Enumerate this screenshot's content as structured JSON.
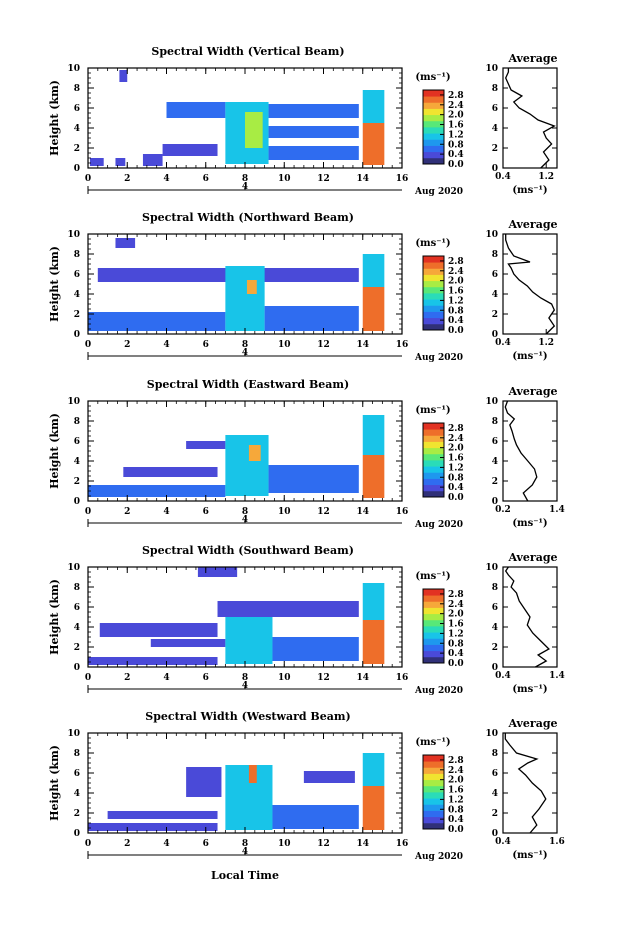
{
  "figure": {
    "xlabel": "Local Time",
    "ylabel": "Height (km)",
    "date_label": "Aug 2020",
    "date_tick_label": "4",
    "colorbar_unit": "(ms⁻¹)",
    "profile_title": "Average",
    "profile_xlabel": "(ms⁻¹)"
  },
  "colors": {
    "colormap": [
      "#303078",
      "#4a4ad8",
      "#2f6cf0",
      "#1e98ee",
      "#18c4e8",
      "#2adcb8",
      "#58e878",
      "#a8ec44",
      "#f0e430",
      "#f6a83a",
      "#ee6e2a",
      "#e23222"
    ]
  },
  "chart_data": [
    {
      "type": "heatmap",
      "title": "Spectral Width (Vertical Beam)",
      "x_ticks": [
        "0",
        "2",
        "4",
        "6",
        "8",
        "10",
        "12",
        "14",
        "16"
      ],
      "y_ticks": [
        "0",
        "2",
        "4",
        "6",
        "8",
        "10"
      ],
      "xlim": [
        0,
        16
      ],
      "ylim": [
        0,
        10
      ],
      "colorbar_ticks": [
        "0.0",
        "0.4",
        "0.8",
        "1.2",
        "1.6",
        "2.0",
        "2.4",
        "2.8"
      ],
      "clim": [
        0,
        3
      ],
      "blocks": [
        {
          "x": [
            0.1,
            0.8
          ],
          "y": [
            0.2,
            1.0
          ],
          "v": 0.35
        },
        {
          "x": [
            1.4,
            1.9
          ],
          "y": [
            0.2,
            1.0
          ],
          "v": 0.35
        },
        {
          "x": [
            2.8,
            3.8
          ],
          "y": [
            0.2,
            1.4
          ],
          "v": 0.4
        },
        {
          "x": [
            1.6,
            2.0
          ],
          "y": [
            8.6,
            9.8
          ],
          "v": 0.4
        },
        {
          "x": [
            3.8,
            6.6
          ],
          "y": [
            1.2,
            2.4
          ],
          "v": 0.45
        },
        {
          "x": [
            4.0,
            7.0
          ],
          "y": [
            5.0,
            6.6
          ],
          "v": 0.5
        },
        {
          "x": [
            7.0,
            9.2
          ],
          "y": [
            0.4,
            6.6
          ],
          "v": 1.1
        },
        {
          "x": [
            8.0,
            8.9
          ],
          "y": [
            2.0,
            5.6
          ],
          "v": 1.8
        },
        {
          "x": [
            9.2,
            13.8
          ],
          "y": [
            5.0,
            6.4
          ],
          "v": 0.55
        },
        {
          "x": [
            9.2,
            13.8
          ],
          "y": [
            3.0,
            4.2
          ],
          "v": 0.55
        },
        {
          "x": [
            9.2,
            13.8
          ],
          "y": [
            0.8,
            2.2
          ],
          "v": 0.6
        },
        {
          "x": [
            14.0,
            15.1
          ],
          "y": [
            0.3,
            4.5
          ],
          "v": 2.6
        },
        {
          "x": [
            14.0,
            15.1
          ],
          "y": [
            4.5,
            7.8
          ],
          "v": 1.0
        }
      ],
      "profile": {
        "xlim": [
          0.4,
          1.4
        ],
        "x_ticks": [
          "0.4",
          "1.2"
        ],
        "tick_values": [
          0.4,
          1.2
        ],
        "x": [
          1.1,
          1.25,
          1.15,
          1.3,
          1.2,
          1.15,
          1.35,
          1.05,
          0.9,
          0.7,
          0.6,
          0.75,
          0.55,
          0.5,
          0.45,
          0.5,
          0.5
        ],
        "height": [
          0,
          0.8,
          1.6,
          2.4,
          3.0,
          3.6,
          4.2,
          4.8,
          5.4,
          6.0,
          6.6,
          7.2,
          7.8,
          8.4,
          9.0,
          9.6,
          10.0
        ]
      }
    },
    {
      "type": "heatmap",
      "title": "Spectral Width (Northward Beam)",
      "x_ticks": [
        "0",
        "2",
        "4",
        "6",
        "8",
        "10",
        "12",
        "14",
        "16"
      ],
      "y_ticks": [
        "0",
        "2",
        "4",
        "6",
        "8",
        "10"
      ],
      "xlim": [
        0,
        16
      ],
      "ylim": [
        0,
        10
      ],
      "colorbar_ticks": [
        "0.0",
        "0.4",
        "0.8",
        "1.2",
        "1.6",
        "2.0",
        "2.4",
        "2.8"
      ],
      "clim": [
        0,
        3
      ],
      "blocks": [
        {
          "x": [
            0.0,
            7.0
          ],
          "y": [
            0.3,
            2.2
          ],
          "v": 0.5
        },
        {
          "x": [
            0.5,
            13.8
          ],
          "y": [
            5.2,
            6.6
          ],
          "v": 0.45
        },
        {
          "x": [
            1.4,
            2.4
          ],
          "y": [
            8.6,
            9.6
          ],
          "v": 0.4
        },
        {
          "x": [
            7.0,
            9.0
          ],
          "y": [
            0.3,
            6.8
          ],
          "v": 1.1
        },
        {
          "x": [
            8.1,
            8.6
          ],
          "y": [
            4.0,
            5.4
          ],
          "v": 2.3
        },
        {
          "x": [
            9.0,
            13.8
          ],
          "y": [
            0.3,
            2.8
          ],
          "v": 0.7
        },
        {
          "x": [
            14.0,
            15.1
          ],
          "y": [
            0.3,
            4.7
          ],
          "v": 2.6
        },
        {
          "x": [
            14.0,
            15.1
          ],
          "y": [
            4.7,
            8.0
          ],
          "v": 1.0
        }
      ],
      "profile": {
        "xlim": [
          0.4,
          1.4
        ],
        "x_ticks": [
          "0.4",
          "1.2"
        ],
        "tick_values": [
          0.4,
          1.2
        ],
        "x": [
          1.2,
          1.35,
          1.25,
          1.35,
          1.3,
          1.1,
          0.95,
          0.85,
          0.7,
          0.6,
          0.55,
          0.5,
          0.9,
          0.6,
          0.5,
          0.45,
          0.45
        ],
        "height": [
          0,
          0.8,
          1.6,
          2.4,
          3.0,
          3.6,
          4.2,
          4.8,
          5.4,
          6.0,
          6.6,
          7.0,
          7.2,
          7.8,
          8.6,
          9.4,
          10.0
        ]
      }
    },
    {
      "type": "heatmap",
      "title": "Spectral Width (Eastward Beam)",
      "x_ticks": [
        "0",
        "2",
        "4",
        "6",
        "8",
        "10",
        "12",
        "14",
        "16"
      ],
      "y_ticks": [
        "0",
        "2",
        "4",
        "6",
        "8",
        "10"
      ],
      "xlim": [
        0,
        16
      ],
      "ylim": [
        0,
        10
      ],
      "colorbar_ticks": [
        "0.0",
        "0.4",
        "0.8",
        "1.2",
        "1.6",
        "2.0",
        "2.4",
        "2.8"
      ],
      "clim": [
        0,
        3
      ],
      "blocks": [
        {
          "x": [
            0.0,
            7.0
          ],
          "y": [
            0.4,
            1.6
          ],
          "v": 0.5
        },
        {
          "x": [
            1.8,
            6.6
          ],
          "y": [
            2.4,
            3.4
          ],
          "v": 0.4
        },
        {
          "x": [
            5.0,
            7.0
          ],
          "y": [
            5.2,
            6.0
          ],
          "v": 0.4
        },
        {
          "x": [
            7.0,
            9.2
          ],
          "y": [
            0.5,
            6.6
          ],
          "v": 1.2
        },
        {
          "x": [
            8.2,
            8.8
          ],
          "y": [
            4.0,
            5.6
          ],
          "v": 2.3
        },
        {
          "x": [
            9.2,
            13.8
          ],
          "y": [
            0.8,
            3.6
          ],
          "v": 0.6
        },
        {
          "x": [
            14.0,
            15.1
          ],
          "y": [
            0.3,
            4.6
          ],
          "v": 2.6
        },
        {
          "x": [
            14.0,
            15.1
          ],
          "y": [
            4.6,
            8.6
          ],
          "v": 1.0
        }
      ],
      "profile": {
        "xlim": [
          0.2,
          1.4
        ],
        "x_ticks": [
          "0.2",
          "1.4"
        ],
        "tick_values": [
          0.2,
          1.4
        ],
        "x": [
          0.75,
          0.65,
          0.85,
          0.95,
          0.9,
          0.75,
          0.6,
          0.5,
          0.45,
          0.4,
          0.35,
          0.45,
          0.3,
          0.25,
          0.3
        ],
        "height": [
          0,
          0.8,
          1.6,
          2.4,
          3.2,
          4.0,
          4.8,
          5.6,
          6.2,
          7.0,
          7.6,
          8.2,
          8.8,
          9.4,
          10.0
        ]
      }
    },
    {
      "type": "heatmap",
      "title": "Spectral Width (Southward Beam)",
      "x_ticks": [
        "0",
        "2",
        "4",
        "6",
        "8",
        "10",
        "12",
        "14",
        "16"
      ],
      "y_ticks": [
        "0",
        "2",
        "4",
        "6",
        "8",
        "10"
      ],
      "xlim": [
        0,
        16
      ],
      "ylim": [
        0,
        10
      ],
      "colorbar_ticks": [
        "0.0",
        "0.4",
        "0.8",
        "1.2",
        "1.6",
        "2.0",
        "2.4",
        "2.8"
      ],
      "clim": [
        0,
        3
      ],
      "blocks": [
        {
          "x": [
            0.0,
            6.6
          ],
          "y": [
            0.2,
            1.0
          ],
          "v": 0.4
        },
        {
          "x": [
            0.6,
            6.6
          ],
          "y": [
            3.0,
            4.4
          ],
          "v": 0.45
        },
        {
          "x": [
            5.6,
            7.6
          ],
          "y": [
            9.0,
            10.0
          ],
          "v": 0.4
        },
        {
          "x": [
            3.2,
            7.0
          ],
          "y": [
            2.0,
            2.8
          ],
          "v": 0.45
        },
        {
          "x": [
            7.0,
            9.4
          ],
          "y": [
            0.3,
            5.6
          ],
          "v": 1.15
        },
        {
          "x": [
            9.4,
            13.8
          ],
          "y": [
            0.6,
            3.0
          ],
          "v": 0.55
        },
        {
          "x": [
            6.6,
            13.8
          ],
          "y": [
            5.0,
            6.6
          ],
          "v": 0.45
        },
        {
          "x": [
            14.0,
            15.1
          ],
          "y": [
            0.3,
            4.7
          ],
          "v": 2.6
        },
        {
          "x": [
            14.0,
            15.1
          ],
          "y": [
            4.7,
            8.4
          ],
          "v": 1.0
        }
      ],
      "profile": {
        "xlim": [
          0.4,
          1.4
        ],
        "x_ticks": [
          "0.4",
          "1.4"
        ],
        "tick_values": [
          0.4,
          1.4
        ],
        "x": [
          1.0,
          1.2,
          1.05,
          1.25,
          1.1,
          0.95,
          0.85,
          0.9,
          0.8,
          0.7,
          0.65,
          0.55,
          0.6,
          0.5,
          0.45,
          0.5
        ],
        "height": [
          0,
          0.6,
          1.2,
          1.8,
          2.6,
          3.4,
          4.2,
          5.0,
          5.8,
          6.6,
          7.4,
          8.0,
          8.6,
          9.2,
          9.6,
          10.0
        ]
      }
    },
    {
      "type": "heatmap",
      "title": "Spectral Width (Westward Beam)",
      "x_ticks": [
        "0",
        "2",
        "4",
        "6",
        "8",
        "10",
        "12",
        "14",
        "16"
      ],
      "y_ticks": [
        "0",
        "2",
        "4",
        "6",
        "8",
        "10"
      ],
      "xlim": [
        0,
        16
      ],
      "ylim": [
        0,
        10
      ],
      "colorbar_ticks": [
        "0.0",
        "0.4",
        "0.8",
        "1.2",
        "1.6",
        "2.0",
        "2.4",
        "2.8"
      ],
      "clim": [
        0,
        3
      ],
      "blocks": [
        {
          "x": [
            0.0,
            6.6
          ],
          "y": [
            0.2,
            1.0
          ],
          "v": 0.4
        },
        {
          "x": [
            1.0,
            6.6
          ],
          "y": [
            1.4,
            2.2
          ],
          "v": 0.4
        },
        {
          "x": [
            5.0,
            6.8
          ],
          "y": [
            3.6,
            6.6
          ],
          "v": 0.45
        },
        {
          "x": [
            7.0,
            9.4
          ],
          "y": [
            0.3,
            6.8
          ],
          "v": 1.1
        },
        {
          "x": [
            8.2,
            8.6
          ],
          "y": [
            5.0,
            6.8
          ],
          "v": 2.6
        },
        {
          "x": [
            9.4,
            13.8
          ],
          "y": [
            0.4,
            2.8
          ],
          "v": 0.55
        },
        {
          "x": [
            11.0,
            13.6
          ],
          "y": [
            5.0,
            6.2
          ],
          "v": 0.4
        },
        {
          "x": [
            14.0,
            15.1
          ],
          "y": [
            0.3,
            4.7
          ],
          "v": 2.6
        },
        {
          "x": [
            14.0,
            15.1
          ],
          "y": [
            4.7,
            8.0
          ],
          "v": 1.0
        }
      ],
      "profile": {
        "xlim": [
          0.4,
          1.6
        ],
        "x_ticks": [
          "0.4",
          "1.6"
        ],
        "tick_values": [
          0.4,
          1.6
        ],
        "x": [
          1.0,
          1.15,
          1.05,
          1.2,
          1.35,
          1.25,
          1.05,
          0.9,
          0.75,
          0.95,
          1.15,
          0.7,
          0.55,
          0.45,
          0.45
        ],
        "height": [
          0,
          0.8,
          1.6,
          2.4,
          3.4,
          4.2,
          5.0,
          5.8,
          6.4,
          7.0,
          7.4,
          8.0,
          8.8,
          9.4,
          10.0
        ]
      }
    }
  ]
}
